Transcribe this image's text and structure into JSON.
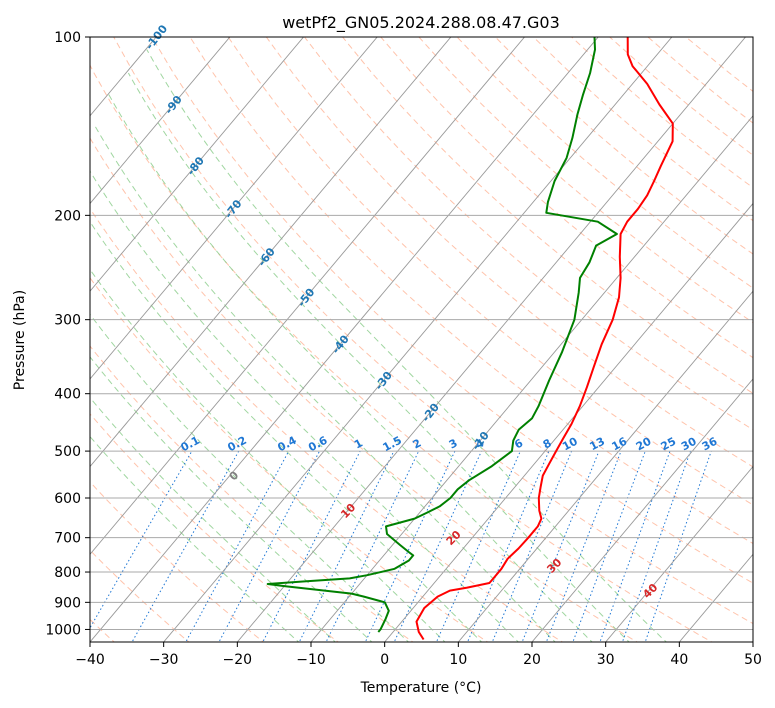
{
  "chart_data": {
    "type": "line",
    "subtype": "skew-T log-P diagram",
    "title": "wetPf2_GN05.2024.288.08.47.G03",
    "xlabel": "Temperature (°C)",
    "ylabel": "Pressure (hPa)",
    "xlim": [
      -40,
      50
    ],
    "ylim": [
      1050,
      100
    ],
    "y_scale": "log",
    "xticks": [
      -40,
      -30,
      -20,
      -10,
      0,
      10,
      20,
      30,
      40,
      50
    ],
    "yticks": [
      1000,
      900,
      800,
      700,
      600,
      500,
      400,
      300,
      200,
      100
    ],
    "colors": {
      "temperature": "#ff0000",
      "dewpoint": "#008000",
      "isotherm": "#999999",
      "isobar": "#aaaaaa",
      "dry_adiabat": "#ffaa88",
      "moist_adiabat": "#88cc88",
      "mixing_ratio": "#1f77d4",
      "label_blue": "#1f77b4",
      "label_red": "#d62728",
      "label_gray": "#808080"
    },
    "series": [
      {
        "key": "temperature",
        "points": [
          [
            5,
            1040
          ],
          [
            3.5,
            1010
          ],
          [
            2,
            970
          ],
          [
            1.5,
            920
          ],
          [
            2,
            880
          ],
          [
            3,
            860
          ],
          [
            5,
            850
          ],
          [
            7.5,
            835
          ],
          [
            7.5,
            820
          ],
          [
            7.5,
            790
          ],
          [
            7.2,
            760
          ],
          [
            7.5,
            730
          ],
          [
            7.6,
            700
          ],
          [
            7.6,
            670
          ],
          [
            7.2,
            650
          ],
          [
            6,
            630
          ],
          [
            4.5,
            600
          ],
          [
            3.5,
            575
          ],
          [
            2.5,
            550
          ],
          [
            2,
            525
          ],
          [
            1.5,
            500
          ],
          [
            1,
            475
          ],
          [
            0.5,
            450
          ],
          [
            -0.4,
            420
          ],
          [
            -1.6,
            390
          ],
          [
            -3,
            360
          ],
          [
            -4.5,
            330
          ],
          [
            -5.8,
            300
          ],
          [
            -7.5,
            275
          ],
          [
            -9.5,
            255
          ],
          [
            -12,
            235
          ],
          [
            -14.5,
            215
          ],
          [
            -15,
            205
          ],
          [
            -15,
            195
          ],
          [
            -15.3,
            185
          ],
          [
            -16,
            175
          ],
          [
            -16.8,
            165
          ],
          [
            -18,
            150
          ],
          [
            -20,
            140
          ],
          [
            -24,
            130
          ],
          [
            -28,
            120
          ],
          [
            -32,
            112
          ],
          [
            -34,
            107
          ],
          [
            -36,
            100
          ]
        ]
      },
      {
        "key": "dewpoint",
        "points": [
          [
            -2,
            1010
          ],
          [
            -2,
            1000
          ],
          [
            -2.5,
            960
          ],
          [
            -3,
            930
          ],
          [
            -4.5,
            900
          ],
          [
            -8,
            880
          ],
          [
            -10,
            870
          ],
          [
            -20,
            845
          ],
          [
            -22.5,
            838
          ],
          [
            -18,
            830
          ],
          [
            -12,
            820
          ],
          [
            -10,
            810
          ],
          [
            -7,
            790
          ],
          [
            -6,
            765
          ],
          [
            -6,
            750
          ],
          [
            -7,
            740
          ],
          [
            -9,
            720
          ],
          [
            -12,
            690
          ],
          [
            -13,
            670
          ],
          [
            -10,
            650
          ],
          [
            -9,
            635
          ],
          [
            -8,
            620
          ],
          [
            -7.5,
            600
          ],
          [
            -7.5,
            580
          ],
          [
            -7,
            560
          ],
          [
            -5.5,
            530
          ],
          [
            -4.5,
            500
          ],
          [
            -5.5,
            480
          ],
          [
            -6,
            460
          ],
          [
            -5.5,
            440
          ],
          [
            -6,
            420
          ],
          [
            -7.5,
            380
          ],
          [
            -9,
            340
          ],
          [
            -11,
            300
          ],
          [
            -13.5,
            270
          ],
          [
            -15,
            255
          ],
          [
            -15.5,
            240
          ],
          [
            -16.5,
            225
          ],
          [
            -15,
            215
          ],
          [
            -19,
            205
          ],
          [
            -27,
            198
          ],
          [
            -28,
            190
          ],
          [
            -29.5,
            175
          ],
          [
            -30.5,
            160
          ],
          [
            -32,
            148
          ],
          [
            -34,
            135
          ],
          [
            -35.5,
            125
          ],
          [
            -37,
            115
          ],
          [
            -39,
            105
          ],
          [
            -40.5,
            100
          ]
        ]
      }
    ],
    "isotherm_lines": [
      -140,
      -130,
      -120,
      -110,
      -100,
      -90,
      -80,
      -70,
      -60,
      -50,
      -40,
      -30,
      -20,
      -10,
      0,
      10,
      20,
      30,
      40,
      50
    ],
    "dry_adiabat_lines": [
      -40,
      -30,
      -20,
      -10,
      0,
      10,
      20,
      30,
      40,
      50,
      60,
      70,
      80,
      90,
      100,
      110,
      120,
      130,
      140,
      150,
      160,
      170,
      180,
      190,
      200
    ],
    "moist_adiabat_lines": [
      -15,
      -10,
      -5,
      0,
      5,
      10,
      15,
      20,
      25,
      30,
      35
    ],
    "mixing_ratio_lines": [
      0.1,
      0.2,
      0.4,
      0.6,
      1,
      1.5,
      2,
      3,
      4,
      6,
      8,
      10,
      13,
      16,
      20,
      25,
      30,
      36
    ],
    "mixing_ratio_labels": [
      "0.1",
      "0.2",
      "0.4",
      "0.6",
      "1",
      "1.5",
      "2",
      "3",
      "4",
      "6",
      "8",
      "10",
      "13",
      "16",
      "20",
      "25",
      "30",
      "36"
    ],
    "isotherm_labels": [
      "-100",
      "-90",
      "-80",
      "-70",
      "-60",
      "-50",
      "-40",
      "-30",
      "-20",
      "-10"
    ],
    "moist_labels": [
      "0",
      "10",
      "20",
      "30",
      "40"
    ]
  }
}
